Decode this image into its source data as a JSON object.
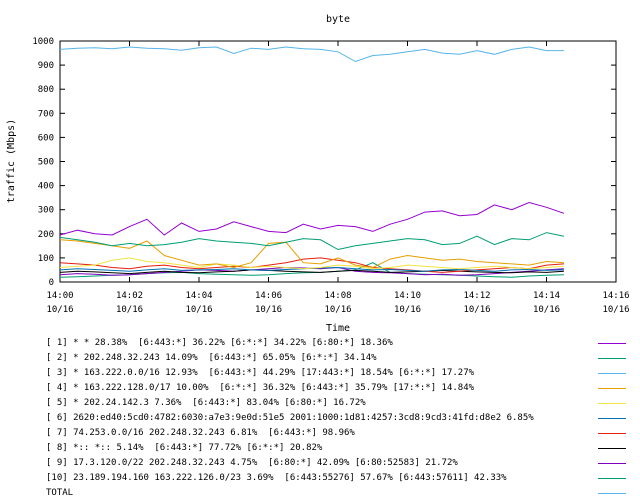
{
  "chart_data": {
    "type": "line",
    "title": "byte",
    "xlabel": "Time",
    "ylabel": "traffic (Mbps)",
    "ylim": [
      0,
      1000
    ],
    "yticks": [
      "0",
      "100",
      "200",
      "300",
      "400",
      "500",
      "600",
      "700",
      "800",
      "900",
      "1000"
    ],
    "xlim": [
      "14:00",
      "14:16"
    ],
    "xticks": [
      {
        "time": "14:00",
        "date": "10/16"
      },
      {
        "time": "14:02",
        "date": "10/16"
      },
      {
        "time": "14:04",
        "date": "10/16"
      },
      {
        "time": "14:06",
        "date": "10/16"
      },
      {
        "time": "14:08",
        "date": "10/16"
      },
      {
        "time": "14:10",
        "date": "10/16"
      },
      {
        "time": "14:12",
        "date": "10/16"
      },
      {
        "time": "14:14",
        "date": "10/16"
      },
      {
        "time": "14:16",
        "date": "10/16"
      }
    ],
    "grid": false,
    "legend_position": "bottom",
    "x": [
      "14:00:00",
      "14:00:30",
      "14:01:00",
      "14:01:30",
      "14:02:00",
      "14:02:30",
      "14:03:00",
      "14:03:30",
      "14:04:00",
      "14:04:30",
      "14:05:00",
      "14:05:30",
      "14:06:00",
      "14:06:30",
      "14:07:00",
      "14:07:30",
      "14:08:00",
      "14:08:30",
      "14:09:00",
      "14:09:30",
      "14:10:00",
      "14:10:30",
      "14:11:00",
      "14:11:30",
      "14:12:00",
      "14:12:30",
      "14:13:00",
      "14:13:30",
      "14:14:00",
      "14:14:30"
    ],
    "series": [
      {
        "name": "[ 1] * * 28.38%  [6:443:*] 36.22% [6:*:*] 34.22% [6:80:*] 18.36%",
        "color": "#9400d3",
        "values": [
          195,
          215,
          200,
          195,
          230,
          260,
          195,
          245,
          210,
          220,
          250,
          230,
          210,
          205,
          240,
          220,
          235,
          230,
          210,
          240,
          260,
          290,
          295,
          275,
          280,
          320,
          300,
          330,
          310,
          285
        ]
      },
      {
        "name": "[ 2] * 202.248.32.243 14.09%  [6:443:*] 65.05% [6:*:*] 34.14%",
        "color": "#009e73",
        "values": [
          185,
          175,
          165,
          150,
          160,
          150,
          155,
          165,
          180,
          170,
          165,
          160,
          150,
          165,
          180,
          175,
          135,
          150,
          160,
          170,
          180,
          175,
          155,
          160,
          190,
          155,
          180,
          175,
          205,
          190
        ]
      },
      {
        "name": "[ 3] * 163.222.0.0/16 12.93%  [6:443:*] 44.29% [17:443:*] 18.54% [6:*:*] 17.27%",
        "color": "#56b4e9",
        "values": [
          965,
          970,
          972,
          968,
          975,
          970,
          968,
          962,
          972,
          975,
          948,
          970,
          965,
          975,
          968,
          965,
          955,
          915,
          940,
          945,
          955,
          965,
          950,
          945,
          960,
          945,
          965,
          975,
          960,
          960
        ]
      },
      {
        "name": "[ 4] * 163.222.128.0/17 10.00%  [6:*:*] 36.32% [6:443:*] 35.79% [17:*:*] 14.84%",
        "color": "#e69f00",
        "values": [
          175,
          170,
          160,
          150,
          140,
          170,
          110,
          90,
          70,
          75,
          60,
          80,
          160,
          165,
          80,
          75,
          100,
          70,
          60,
          95,
          110,
          100,
          90,
          95,
          85,
          80,
          75,
          70,
          85,
          80
        ]
      },
      {
        "name": "[ 5] * 202.24.142.3 7.36%  [6:443:*] 83.04% [6:80:*] 16.72%",
        "color": "#f0e442",
        "values": [
          60,
          65,
          70,
          90,
          100,
          85,
          80,
          70,
          60,
          75,
          70,
          60,
          65,
          60,
          55,
          60,
          70,
          65,
          55,
          60,
          70,
          65,
          60,
          55,
          60,
          65,
          60,
          55,
          60,
          65
        ]
      },
      {
        "name": "[ 6] 2620:ed40:5cd0:4782:6030:a7e3:9e0d:51e5 2001:1000:1d81:4257:3cd8:9cd3:41fd:d8e2 6.85%",
        "color": "#0072b2",
        "values": [
          50,
          55,
          52,
          48,
          45,
          50,
          55,
          48,
          50,
          52,
          55,
          50,
          48,
          52,
          55,
          58,
          60,
          55,
          50,
          52,
          48,
          45,
          50,
          52,
          48,
          45,
          50,
          52,
          48,
          50
        ]
      },
      {
        "name": "[ 7] 74.253.0.0/16 202.248.32.243 6.81%  [6:443:*] 98.96%",
        "color": "#e51e10",
        "values": [
          80,
          75,
          70,
          60,
          55,
          65,
          70,
          60,
          55,
          60,
          65,
          60,
          70,
          80,
          95,
          100,
          90,
          80,
          60,
          55,
          50,
          45,
          40,
          45,
          50,
          55,
          60,
          55,
          70,
          75
        ]
      },
      {
        "name": "[ 8] *:: *:: 5.14%  [6:443:*] 77.72% [6:*:*] 20.82%",
        "color": "#000000",
        "values": [
          40,
          45,
          42,
          38,
          35,
          40,
          45,
          40,
          38,
          42,
          45,
          50,
          48,
          45,
          42,
          40,
          45,
          48,
          45,
          40,
          42,
          45,
          48,
          45,
          42,
          40,
          38,
          42,
          40,
          45
        ]
      },
      {
        "name": "[ 9] 17.3.120.0/22 202.248.32.243 4.75%  [6:80:*] 42.09% [6:80:52583] 21.72%",
        "color": "#8000c0",
        "values": [
          30,
          35,
          32,
          28,
          30,
          35,
          40,
          45,
          50,
          48,
          45,
          50,
          55,
          60,
          58,
          55,
          60,
          45,
          40,
          38,
          35,
          30,
          32,
          28,
          30,
          35,
          40,
          45,
          50,
          55
        ]
      },
      {
        "name": "[10] 23.189.194.160 163.222.126.0/23 3.69%  [6:443:55276] 57.67% [6:443:57611] 42.33%",
        "color": "#009e73",
        "values": [
          20,
          22,
          25,
          28,
          30,
          35,
          38,
          40,
          35,
          32,
          30,
          28,
          30,
          35,
          38,
          40,
          45,
          50,
          80,
          40,
          35,
          32,
          30,
          28,
          25,
          22,
          20,
          25,
          28,
          30
        ]
      }
    ],
    "legend_entries": [
      {
        "label": "[ 1] * * 28.38%  [6:443:*] 36.22% [6:*:*] 34.22% [6:80:*] 18.36%",
        "color": "#9400d3"
      },
      {
        "label": "[ 2] * 202.248.32.243 14.09%  [6:443:*] 65.05% [6:*:*] 34.14%",
        "color": "#009e73"
      },
      {
        "label": "[ 3] * 163.222.0.0/16 12.93%  [6:443:*] 44.29% [17:443:*] 18.54% [6:*:*] 17.27%",
        "color": "#56b4e9"
      },
      {
        "label": "[ 4] * 163.222.128.0/17 10.00%  [6:*:*] 36.32% [6:443:*] 35.79% [17:*:*] 14.84%",
        "color": "#e69f00"
      },
      {
        "label": "[ 5] * 202.24.142.3 7.36%  [6:443:*] 83.04% [6:80:*] 16.72%",
        "color": "#f0e442"
      },
      {
        "label": "[ 6] 2620:ed40:5cd0:4782:6030:a7e3:9e0d:51e5 2001:1000:1d81:4257:3cd8:9cd3:41fd:d8e2 6.85%",
        "color": "#0072b2"
      },
      {
        "label": "[ 7] 74.253.0.0/16 202.248.32.243 6.81%  [6:443:*] 98.96%",
        "color": "#e51e10"
      },
      {
        "label": "[ 8] *:: *:: 5.14%  [6:443:*] 77.72% [6:*:*] 20.82%",
        "color": "#000000"
      },
      {
        "label": "[ 9] 17.3.120.0/22 202.248.32.243 4.75%  [6:80:*] 42.09% [6:80:52583] 21.72%",
        "color": "#8000c0"
      },
      {
        "label": "[10] 23.189.194.160 163.222.126.0/23 3.69%  [6:443:55276] 57.67% [6:443:57611] 42.33%",
        "color": "#009e73"
      },
      {
        "label": "TOTAL",
        "color": "#56b4e9"
      }
    ]
  }
}
